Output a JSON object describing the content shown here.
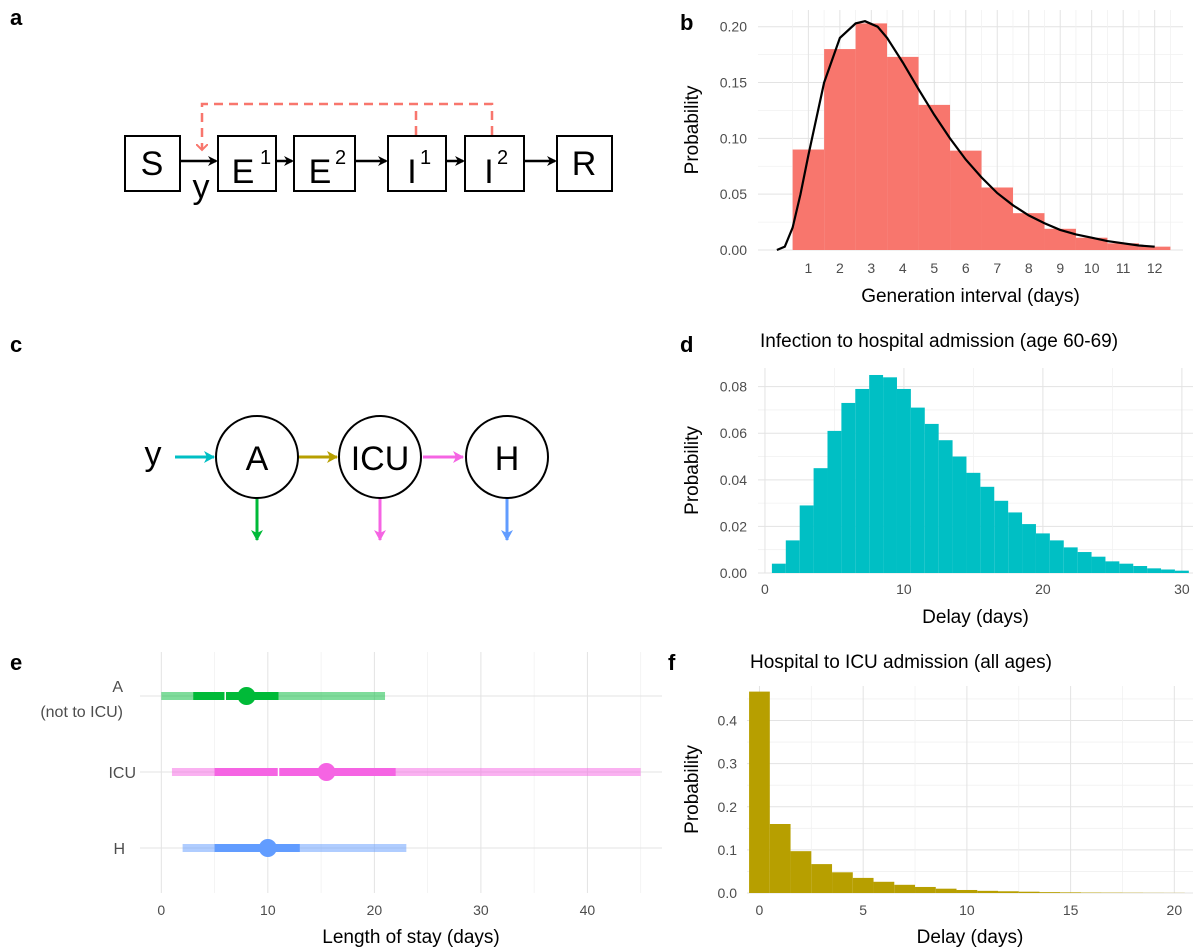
{
  "panel_labels": {
    "a": "a",
    "b": "b",
    "c": "c",
    "d": "d",
    "e": "e",
    "f": "f"
  },
  "diagram_a": {
    "compartments": [
      {
        "base": "S",
        "sup": ""
      },
      {
        "base": "E",
        "sup": "1"
      },
      {
        "base": "E",
        "sup": "2"
      },
      {
        "base": "I",
        "sup": "1"
      },
      {
        "base": "I",
        "sup": "2"
      },
      {
        "base": "R",
        "sup": ""
      }
    ],
    "inflow_label": "y",
    "colors": {
      "flow": "#000000",
      "feedback": "#F8766D"
    }
  },
  "diagram_c": {
    "nodes": [
      "A",
      "ICU",
      "H"
    ],
    "inflow_label": "y",
    "colors": {
      "in": "#00BFC4",
      "a_icu": "#B79F00",
      "icu_h": "#F564E3",
      "out_a": "#00BA38",
      "out_icu": "#F564E3",
      "out_h": "#619CFF"
    }
  },
  "chart_data": [
    {
      "panel": "b",
      "type": "bar",
      "title": "",
      "xlabel": "Generation interval (days)",
      "ylabel": "Probability",
      "x_ticks": [
        "1",
        "2",
        "3",
        "4",
        "5",
        "6",
        "7",
        "8",
        "9",
        "10",
        "11",
        "12"
      ],
      "y_ticks": [
        "0.00",
        "0.05",
        "0.10",
        "0.15",
        "0.20"
      ],
      "xlim": [
        -0.6,
        12.9
      ],
      "ylim": [
        0,
        0.215
      ],
      "bin_width": 1,
      "x": [
        1,
        2,
        3,
        4,
        5,
        6,
        7,
        8,
        9,
        10,
        11,
        12
      ],
      "values": [
        0.09,
        0.18,
        0.203,
        0.173,
        0.13,
        0.089,
        0.056,
        0.033,
        0.019,
        0.011,
        0.006,
        0.003
      ],
      "curve": {
        "x": [
          0,
          0.25,
          0.5,
          0.75,
          1,
          1.5,
          2,
          2.5,
          2.8,
          3.2,
          3.5,
          4,
          4.5,
          5,
          5.5,
          6,
          6.5,
          7,
          7.5,
          8,
          8.5,
          9,
          9.5,
          10,
          10.5,
          11,
          11.5,
          12
        ],
        "y": [
          0,
          0.003,
          0.02,
          0.05,
          0.085,
          0.15,
          0.19,
          0.203,
          0.205,
          0.2,
          0.19,
          0.168,
          0.144,
          0.121,
          0.1,
          0.081,
          0.065,
          0.051,
          0.04,
          0.031,
          0.024,
          0.018,
          0.014,
          0.011,
          0.008,
          0.006,
          0.004,
          0.003
        ]
      },
      "colors": {
        "bar": "#F8766D",
        "curve": "#000000"
      },
      "grid": true
    },
    {
      "panel": "d",
      "type": "bar",
      "title": "Infection to hospital admission (age 60-69)",
      "xlabel": "Delay (days)",
      "ylabel": "Probability",
      "x_ticks": [
        "0",
        "10",
        "20",
        "30"
      ],
      "y_ticks": [
        "0.00",
        "0.02",
        "0.04",
        "0.06",
        "0.08"
      ],
      "xlim": [
        -0.5,
        30.8
      ],
      "ylim": [
        0,
        0.088
      ],
      "bin_width": 1,
      "x": [
        1,
        2,
        3,
        4,
        5,
        6,
        7,
        8,
        9,
        10,
        11,
        12,
        13,
        14,
        15,
        16,
        17,
        18,
        19,
        20,
        21,
        22,
        23,
        24,
        25,
        26,
        27,
        28,
        29,
        30
      ],
      "values": [
        0.004,
        0.014,
        0.029,
        0.045,
        0.061,
        0.073,
        0.079,
        0.085,
        0.084,
        0.079,
        0.071,
        0.064,
        0.057,
        0.05,
        0.043,
        0.037,
        0.031,
        0.026,
        0.021,
        0.017,
        0.014,
        0.011,
        0.009,
        0.007,
        0.005,
        0.004,
        0.003,
        0.002,
        0.0015,
        0.001
      ],
      "colors": {
        "bar": "#00BFC4"
      },
      "grid": true
    },
    {
      "panel": "e",
      "type": "interval",
      "title": "",
      "xlabel": "Length of stay (days)",
      "ylabel": "",
      "x_ticks": [
        "0",
        "10",
        "20",
        "30",
        "40"
      ],
      "xlim": [
        -2,
        47
      ],
      "categories": [
        "A\n(not to ICU)",
        "ICU",
        "H"
      ],
      "series": [
        {
          "category": "A\n(not to ICU)",
          "outer": [
            0,
            21
          ],
          "inner": [
            3,
            11
          ],
          "median_split": 6,
          "point": 8,
          "color": "#00BA38"
        },
        {
          "category": "ICU",
          "outer": [
            1,
            45
          ],
          "inner": [
            5,
            22
          ],
          "median_split": 11,
          "point": 15.5,
          "color": "#F564E3"
        },
        {
          "category": "H",
          "outer": [
            2,
            23
          ],
          "inner": [
            5,
            13
          ],
          "median_split": 10,
          "point": 10,
          "color": "#619CFF"
        }
      ],
      "grid": true
    },
    {
      "panel": "f",
      "type": "bar",
      "title": "Hospital to ICU admission (all ages)",
      "xlabel": "Delay (days)",
      "ylabel": "Probability",
      "x_ticks": [
        "0",
        "5",
        "10",
        "15",
        "20"
      ],
      "y_ticks": [
        "0.0",
        "0.1",
        "0.2",
        "0.3",
        "0.4"
      ],
      "xlim": [
        -0.6,
        20.9
      ],
      "ylim": [
        0,
        0.48
      ],
      "bin_width": 1,
      "x": [
        0,
        1,
        2,
        3,
        4,
        5,
        6,
        7,
        8,
        9,
        10,
        11,
        12,
        13,
        14,
        15,
        16,
        17,
        18,
        19,
        20
      ],
      "values": [
        0.467,
        0.16,
        0.097,
        0.067,
        0.048,
        0.035,
        0.026,
        0.019,
        0.014,
        0.01,
        0.007,
        0.005,
        0.004,
        0.003,
        0.002,
        0.0015,
        0.001,
        0.0008,
        0.0006,
        0.0004,
        0.0003
      ],
      "colors": {
        "bar": "#B79F00"
      },
      "grid": true
    }
  ]
}
